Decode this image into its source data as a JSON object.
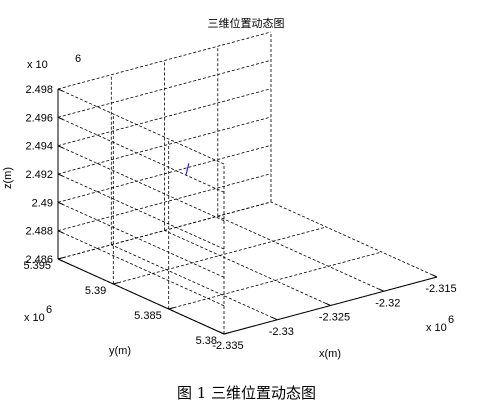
{
  "chart_data": {
    "type": "line3d",
    "title": "三维位置动态图",
    "xlabel": "x(m)",
    "ylabel": "y(m)",
    "zlabel": "z(m)",
    "x_multiplier": "x 10",
    "y_multiplier": "x 10",
    "z_multiplier": "x 10",
    "multiplier_exponent": "6",
    "xlim": [
      -2335000,
      -2315000
    ],
    "ylim": [
      5380000,
      5395000
    ],
    "zlim": [
      2486000,
      2498000
    ],
    "x_ticks": [
      -2335000,
      -2330000,
      -2325000,
      -2320000,
      -2315000
    ],
    "x_tick_labels": [
      "-2.335",
      "-2.33",
      "-2.325",
      "-2.32",
      "-2.315"
    ],
    "y_ticks": [
      5380000,
      5385000,
      5390000,
      5395000
    ],
    "y_tick_labels": [
      "5.38",
      "5.385",
      "5.39",
      "5.395"
    ],
    "z_ticks": [
      2486000,
      2488000,
      2490000,
      2492000,
      2494000,
      2496000,
      2498000
    ],
    "z_tick_labels": [
      "2.486",
      "2.488",
      "2.49",
      "2.492",
      "2.494",
      "2.496",
      "2.498"
    ],
    "grid": true,
    "series": [
      {
        "color": "#0000ff",
        "x": [
          -2324800,
          -2323500
        ],
        "y": [
          5393000,
          5394500
        ],
        "z": [
          2491400,
          2489800
        ]
      }
    ]
  },
  "caption": "图 1  三维位置动态图"
}
